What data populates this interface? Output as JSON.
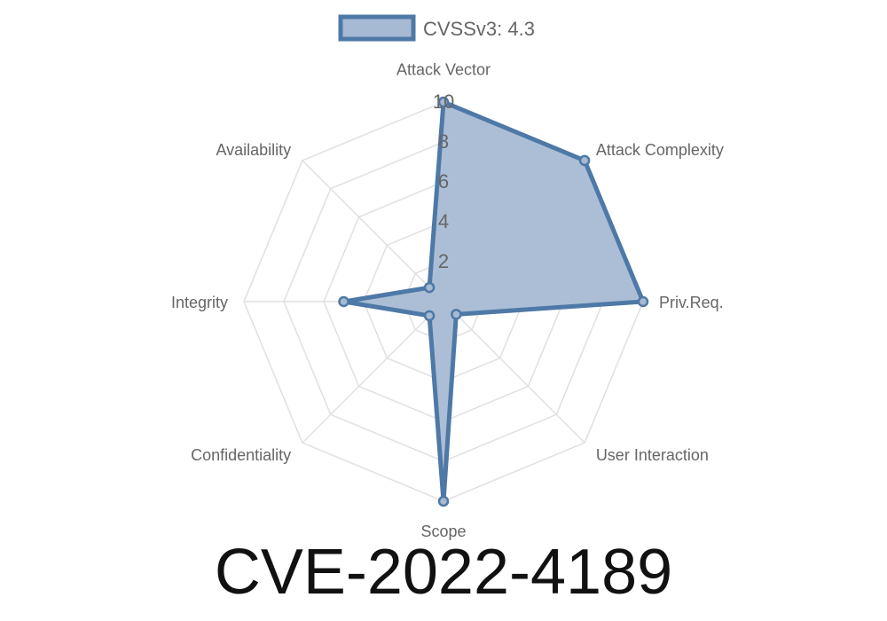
{
  "chart_data": {
    "type": "radar",
    "title": "CVE-2022-4189",
    "categories": [
      "Attack Vector",
      "Attack Complexity",
      "Priv.Req.",
      "User Interaction",
      "Scope",
      "Confidentiality",
      "Integrity",
      "Availability"
    ],
    "series": [
      {
        "name": "CVSSv3: 4.3",
        "values": [
          10,
          10,
          10,
          0.9,
          10,
          1,
          5,
          1
        ]
      }
    ],
    "rlim": [
      0,
      10
    ],
    "ticks": [
      "2",
      "4",
      "6",
      "8",
      "10"
    ],
    "tick_values": [
      2,
      4,
      6,
      8,
      10
    ],
    "grid": true,
    "legend": "top",
    "colors": {
      "line": "#4e79a7",
      "fill": "#a7bad3",
      "grid": "#e0e0e0",
      "text": "#666666"
    }
  }
}
